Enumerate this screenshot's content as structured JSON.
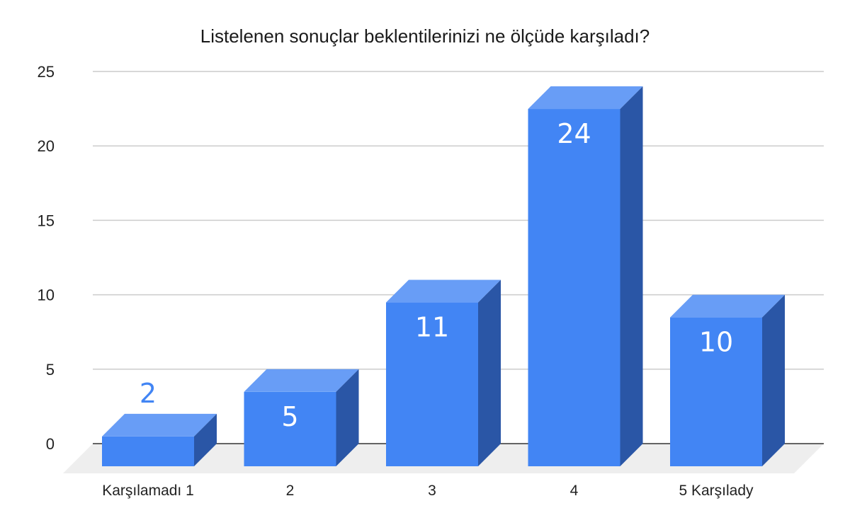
{
  "chart_data": {
    "type": "bar",
    "title": "Listelenen sonuçlar beklentilerinizi ne ölçüde karşıladı?",
    "xlabel": "",
    "ylabel": "",
    "categories": [
      "Karşılamadı 1",
      "2",
      "3",
      "4",
      "5 Karşılady"
    ],
    "values": [
      2,
      5,
      11,
      24,
      10
    ],
    "ylim": [
      0,
      25
    ],
    "yticks": [
      0,
      5,
      10,
      15,
      20,
      25
    ],
    "grid": true,
    "legend": "none",
    "colors": {
      "bar_front": "#4285f4",
      "bar_top": "#689df6",
      "bar_side": "#2a56a6",
      "floor": "#eeeeee",
      "gridline": "#cccccc",
      "baseline": "#333333",
      "label_inside": "#ffffff",
      "label_outside": "#4285f4"
    }
  }
}
